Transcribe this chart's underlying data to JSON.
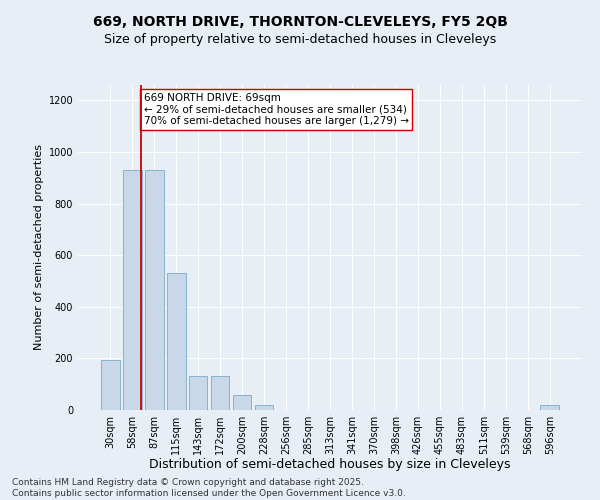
{
  "title1": "669, NORTH DRIVE, THORNTON-CLEVELEYS, FY5 2QB",
  "title2": "Size of property relative to semi-detached houses in Cleveleys",
  "xlabel": "Distribution of semi-detached houses by size in Cleveleys",
  "ylabel": "Number of semi-detached properties",
  "categories": [
    "30sqm",
    "58sqm",
    "87sqm",
    "115sqm",
    "143sqm",
    "172sqm",
    "200sqm",
    "228sqm",
    "256sqm",
    "285sqm",
    "313sqm",
    "341sqm",
    "370sqm",
    "398sqm",
    "426sqm",
    "455sqm",
    "483sqm",
    "511sqm",
    "539sqm",
    "568sqm",
    "596sqm"
  ],
  "values": [
    192,
    930,
    930,
    530,
    130,
    130,
    60,
    20,
    0,
    0,
    0,
    0,
    0,
    0,
    0,
    0,
    0,
    0,
    0,
    0,
    18
  ],
  "bar_color": "#c8d8e8",
  "bar_edge_color": "#7aaaca",
  "vline_x": 1.42,
  "vline_color": "#cc0000",
  "annotation_text": "669 NORTH DRIVE: 69sqm\n← 29% of semi-detached houses are smaller (534)\n70% of semi-detached houses are larger (1,279) →",
  "annotation_box_facecolor": "#ffffff",
  "annotation_box_edgecolor": "#cc0000",
  "ylim": [
    0,
    1260
  ],
  "yticks": [
    0,
    200,
    400,
    600,
    800,
    1000,
    1200
  ],
  "footer": "Contains HM Land Registry data © Crown copyright and database right 2025.\nContains public sector information licensed under the Open Government Licence v3.0.",
  "bg_color": "#e8eef5",
  "plot_bg_color": "#e8eef5",
  "grid_color": "#ffffff",
  "title1_fontsize": 10,
  "title2_fontsize": 9,
  "tick_fontsize": 7,
  "ylabel_fontsize": 8,
  "xlabel_fontsize": 9,
  "annotation_fontsize": 7.5,
  "footer_fontsize": 6.5
}
